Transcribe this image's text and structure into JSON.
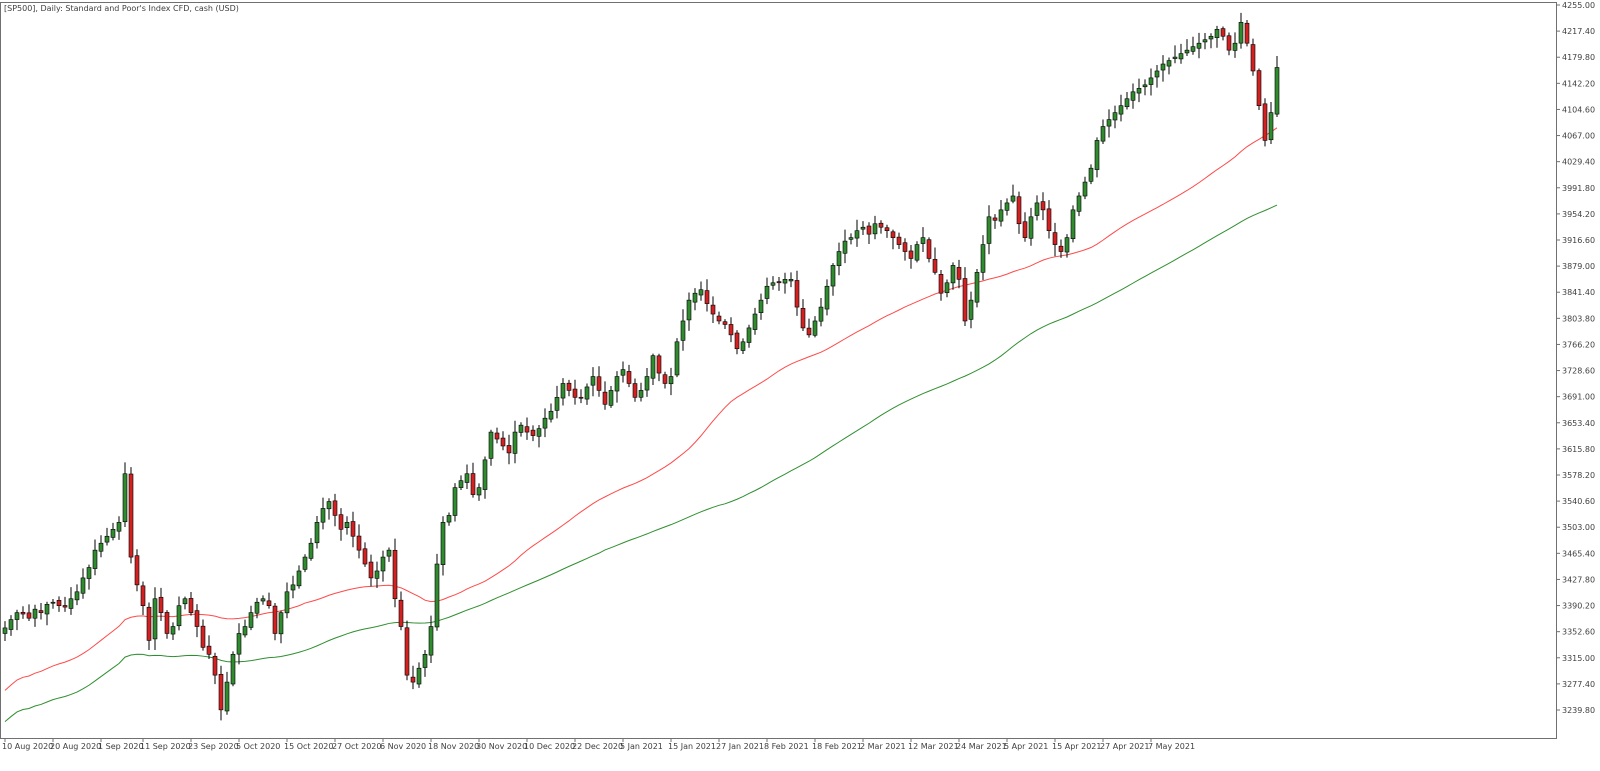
{
  "window": {
    "title": "[SP500], Daily:  Standard and Poor's Index CFD, cash (USD)"
  },
  "colors": {
    "background": "#ffffff",
    "frame": "#707070",
    "text": "#404040",
    "bull_body": "#2e8b2e",
    "bear_body": "#d42020",
    "candle_outline": "#000000",
    "ma_fast": "#ff4a4a",
    "ma_slow": "#2f8f2f"
  },
  "chart_data": {
    "type": "candlestick",
    "title": "[SP500], Daily:  Standard and Poor's Index CFD, cash (USD)",
    "ylim": [
      3215,
      4255
    ],
    "y_ticks": [
      4255.0,
      4217.4,
      4179.8,
      4142.2,
      4104.6,
      4067.0,
      4029.4,
      3991.8,
      3954.2,
      3916.6,
      3879.0,
      3841.4,
      3803.8,
      3766.2,
      3728.6,
      3691.0,
      3653.4,
      3615.8,
      3578.2,
      3540.6,
      3503.0,
      3465.4,
      3427.8,
      3390.2,
      3352.6,
      3315.0,
      3277.4,
      3239.8
    ],
    "x_ticks": [
      {
        "label": "10 Aug 2020",
        "index": 0
      },
      {
        "label": "20 Aug 2020",
        "index": 8
      },
      {
        "label": "1 Sep 2020",
        "index": 16
      },
      {
        "label": "11 Sep 2020",
        "index": 23
      },
      {
        "label": "23 Sep 2020",
        "index": 31
      },
      {
        "label": "5 Oct 2020",
        "index": 39
      },
      {
        "label": "15 Oct 2020",
        "index": 47
      },
      {
        "label": "27 Oct 2020",
        "index": 55
      },
      {
        "label": "6 Nov 2020",
        "index": 63
      },
      {
        "label": "18 Nov 2020",
        "index": 71
      },
      {
        "label": "30 Nov 2020",
        "index": 79
      },
      {
        "label": "10 Dec 2020",
        "index": 87
      },
      {
        "label": "22 Dec 2020",
        "index": 95
      },
      {
        "label": "5 Jan 2021",
        "index": 103
      },
      {
        "label": "15 Jan 2021",
        "index": 111
      },
      {
        "label": "27 Jan 2021",
        "index": 119
      },
      {
        "label": "8 Feb 2021",
        "index": 127
      },
      {
        "label": "18 Feb 2021",
        "index": 135
      },
      {
        "label": "2 Mar 2021",
        "index": 143
      },
      {
        "label": "12 Mar 2021",
        "index": 151
      },
      {
        "label": "24 Mar 2021",
        "index": 159
      },
      {
        "label": "5 Apr 2021",
        "index": 167
      },
      {
        "label": "15 Apr 2021",
        "index": 175
      },
      {
        "label": "27 Apr 2021",
        "index": 183
      },
      {
        "label": "7 May 2021",
        "index": 191
      }
    ],
    "closes": [
      3358,
      3370,
      3380,
      3378,
      3372,
      3385,
      3380,
      3392,
      3395,
      3390,
      3388,
      3400,
      3410,
      3430,
      3445,
      3470,
      3480,
      3490,
      3500,
      3510,
      3580,
      3460,
      3420,
      3390,
      3340,
      3400,
      3380,
      3350,
      3360,
      3390,
      3400,
      3380,
      3360,
      3330,
      3320,
      3290,
      3240,
      3280,
      3320,
      3350,
      3360,
      3380,
      3395,
      3400,
      3390,
      3350,
      3380,
      3410,
      3420,
      3440,
      3460,
      3480,
      3510,
      3530,
      3540,
      3520,
      3500,
      3510,
      3490,
      3470,
      3450,
      3430,
      3440,
      3460,
      3470,
      3400,
      3360,
      3290,
      3280,
      3300,
      3320,
      3360,
      3450,
      3510,
      3520,
      3560,
      3570,
      3580,
      3550,
      3560,
      3600,
      3640,
      3630,
      3620,
      3610,
      3640,
      3650,
      3640,
      3635,
      3645,
      3660,
      3670,
      3690,
      3710,
      3700,
      3690,
      3690,
      3705,
      3720,
      3700,
      3680,
      3700,
      3720,
      3730,
      3710,
      3690,
      3700,
      3720,
      3750,
      3725,
      3710,
      3720,
      3770,
      3800,
      3830,
      3840,
      3845,
      3825,
      3810,
      3800,
      3795,
      3780,
      3760,
      3770,
      3790,
      3810,
      3830,
      3850,
      3855,
      3855,
      3860,
      3860,
      3820,
      3790,
      3780,
      3800,
      3820,
      3850,
      3880,
      3900,
      3915,
      3920,
      3930,
      3935,
      3925,
      3940,
      3935,
      3930,
      3920,
      3910,
      3900,
      3890,
      3910,
      3920,
      3890,
      3870,
      3840,
      3855,
      3880,
      3860,
      3800,
      3830,
      3870,
      3910,
      3950,
      3945,
      3960,
      3970,
      3980,
      3940,
      3920,
      3950,
      3970,
      3960,
      3930,
      3910,
      3900,
      3920,
      3960,
      3980,
      4000,
      4020,
      4060,
      4080,
      4090,
      4100,
      4110,
      4120,
      4130,
      4135,
      4140,
      4150,
      4160,
      4170,
      4175,
      4180,
      4185,
      4190,
      4195,
      4200,
      4205,
      4210,
      4220,
      4210,
      4190,
      4200,
      4230,
      4200,
      4160,
      4110,
      4060,
      4100,
      4165
    ]
  }
}
